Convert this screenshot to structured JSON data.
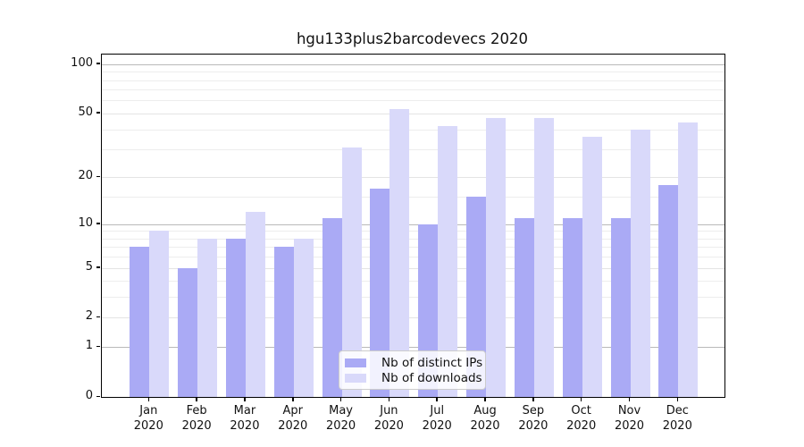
{
  "chart_data": {
    "type": "bar",
    "title": "hgu133plus2barcodevecs 2020",
    "categories": [
      "Jan",
      "Feb",
      "Mar",
      "Apr",
      "May",
      "Jun",
      "Jul",
      "Aug",
      "Sep",
      "Oct",
      "Nov",
      "Dec"
    ],
    "year": "2020",
    "series": [
      {
        "name": "Nb of distinct IPs",
        "color": "#aaaaf5",
        "values": [
          7,
          5,
          8,
          7,
          11,
          17,
          10,
          15,
          11,
          11,
          11,
          18
        ]
      },
      {
        "name": "Nb of downloads",
        "color": "#d9d9fa",
        "values": [
          9,
          8,
          12,
          8,
          31,
          53,
          42,
          47,
          47,
          36,
          40,
          44
        ]
      }
    ],
    "yscale": "log1p",
    "ylim": [
      0,
      100
    ],
    "yticks": [
      0,
      1,
      2,
      5,
      10,
      20,
      50,
      100
    ],
    "decade_ticks": [
      1,
      10,
      100
    ],
    "minor_gridlines": [
      3,
      4,
      6,
      7,
      8,
      9,
      15,
      30,
      40,
      60,
      70,
      80,
      90
    ],
    "grid": true,
    "legend_position": "lower center"
  }
}
